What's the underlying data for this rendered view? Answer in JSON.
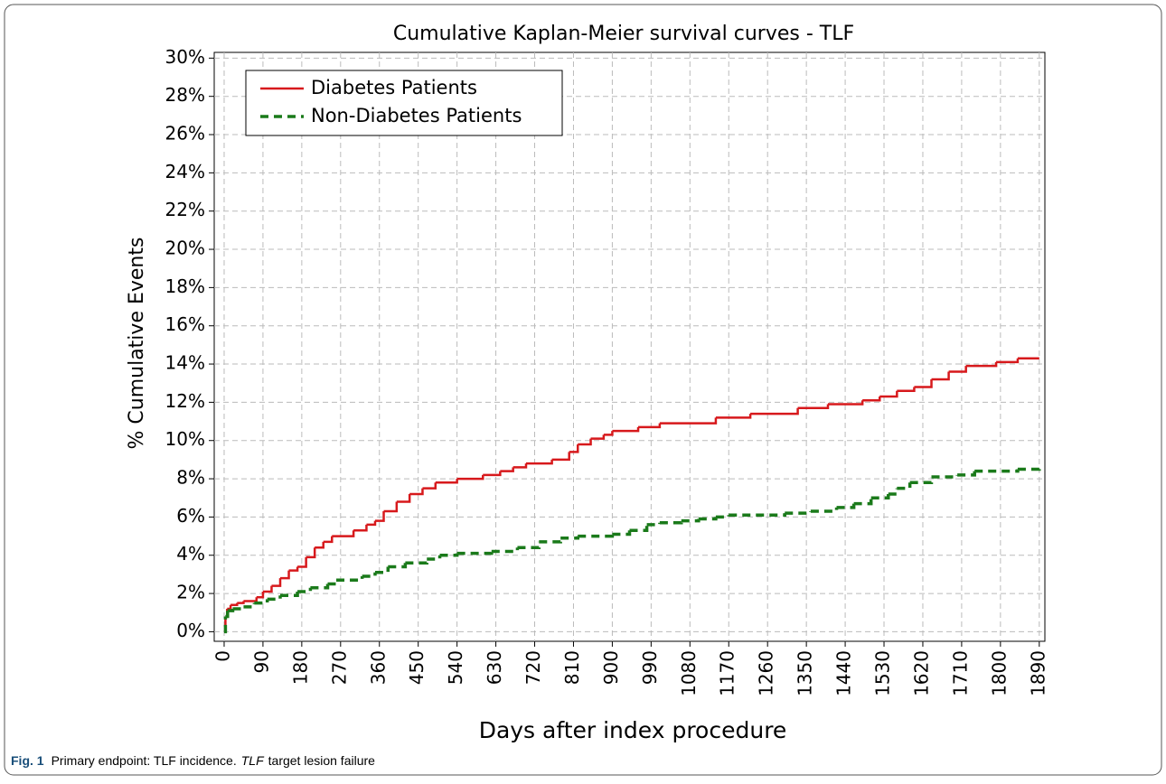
{
  "chart_data": {
    "type": "step",
    "title": "Cumulative Kaplan-Meier survival curves - TLF",
    "x_label": "Days after index procedure",
    "y_label": "% Cumulative Events",
    "xlim": [
      -23,
      1903
    ],
    "ylim": [
      -0.5,
      30.3
    ],
    "xticks": [
      0,
      90,
      180,
      270,
      360,
      450,
      540,
      630,
      720,
      810,
      900,
      990,
      1080,
      1170,
      1260,
      1350,
      1440,
      1530,
      1620,
      1710,
      1800,
      1890
    ],
    "yticks": [
      {
        "value": 0,
        "label": "0%"
      },
      {
        "value": 2,
        "label": "2%"
      },
      {
        "value": 4,
        "label": "4%"
      },
      {
        "value": 6,
        "label": "6%"
      },
      {
        "value": 8,
        "label": "8%"
      },
      {
        "value": 10,
        "label": "10%"
      },
      {
        "value": 12,
        "label": "12%"
      },
      {
        "value": 14,
        "label": "14%"
      },
      {
        "value": 16,
        "label": "16%"
      },
      {
        "value": 18,
        "label": "18%"
      },
      {
        "value": 20,
        "label": "20%"
      },
      {
        "value": 22,
        "label": "22%"
      },
      {
        "value": 24,
        "label": "24%"
      },
      {
        "value": 26,
        "label": "26%"
      },
      {
        "value": 28,
        "label": "28%"
      },
      {
        "value": 30,
        "label": "30%"
      }
    ],
    "grid": true,
    "legend": "upper left",
    "series": [
      {
        "name": "Diabetes Patients",
        "color": "#d7191c",
        "dash": false,
        "x": [
          0,
          3,
          7,
          15,
          30,
          45,
          75,
          90,
          110,
          130,
          150,
          170,
          190,
          210,
          230,
          250,
          300,
          330,
          350,
          370,
          400,
          430,
          460,
          490,
          540,
          600,
          640,
          670,
          700,
          760,
          800,
          820,
          850,
          880,
          900,
          960,
          1010,
          1140,
          1220,
          1330,
          1400,
          1480,
          1520,
          1560,
          1600,
          1640,
          1680,
          1720,
          1790,
          1840,
          1890
        ],
        "values": [
          0,
          0.8,
          1.2,
          1.4,
          1.5,
          1.6,
          1.8,
          2.1,
          2.4,
          2.8,
          3.2,
          3.4,
          3.9,
          4.4,
          4.7,
          5.0,
          5.3,
          5.6,
          5.8,
          6.3,
          6.8,
          7.2,
          7.5,
          7.8,
          8.0,
          8.2,
          8.4,
          8.6,
          8.8,
          9.0,
          9.4,
          9.8,
          10.1,
          10.3,
          10.5,
          10.7,
          10.9,
          11.2,
          11.4,
          11.7,
          11.9,
          12.1,
          12.3,
          12.6,
          12.8,
          13.2,
          13.6,
          13.9,
          14.1,
          14.3,
          14.3
        ]
      },
      {
        "name": "Non-Diabetes Patients",
        "color": "#1a7a1a",
        "dash": true,
        "x": [
          0,
          3,
          8,
          20,
          45,
          70,
          100,
          130,
          170,
          200,
          240,
          260,
          320,
          350,
          380,
          420,
          470,
          500,
          540,
          620,
          680,
          730,
          780,
          820,
          900,
          940,
          980,
          1010,
          1060,
          1100,
          1140,
          1170,
          1300,
          1360,
          1420,
          1460,
          1500,
          1540,
          1560,
          1590,
          1640,
          1700,
          1740,
          1840,
          1890
        ],
        "values": [
          0,
          0.8,
          1.1,
          1.2,
          1.3,
          1.5,
          1.7,
          1.9,
          2.1,
          2.3,
          2.5,
          2.7,
          2.9,
          3.1,
          3.4,
          3.6,
          3.8,
          4.0,
          4.1,
          4.2,
          4.4,
          4.7,
          4.9,
          5.0,
          5.1,
          5.3,
          5.6,
          5.7,
          5.8,
          5.9,
          6.0,
          6.1,
          6.2,
          6.3,
          6.5,
          6.7,
          7.0,
          7.2,
          7.5,
          7.8,
          8.1,
          8.2,
          8.4,
          8.5,
          8.6
        ]
      }
    ],
    "caption": {
      "label": "Fig. 1",
      "text": "Primary endpoint: TLF incidence.",
      "abbr": "TLF",
      "abbr_text": "target lesion failure"
    }
  }
}
